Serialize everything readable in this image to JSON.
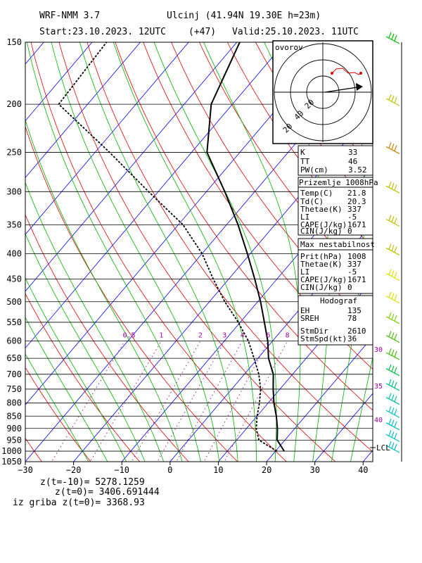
{
  "header": {
    "model": "WRF-NMM 3.7",
    "location": "Ulcinj (41.94N 19.30E  h=23m)",
    "start": "Start:23.10.2023.   12UTC",
    "lead": "(+47)",
    "valid": "Valid:25.10.2023.   11UTC"
  },
  "chart_data": {
    "type": "skew-t",
    "x_axis": {
      "ticks": [
        -30,
        -20,
        -10,
        0,
        10,
        20,
        30,
        40
      ],
      "xlim": [
        -30,
        42
      ]
    },
    "y_axis": {
      "scale": "log",
      "ticks": [
        150,
        200,
        250,
        300,
        350,
        400,
        450,
        500,
        550,
        600,
        650,
        700,
        750,
        800,
        850,
        900,
        950,
        1000,
        1050
      ],
      "ylim": [
        1050,
        150
      ]
    },
    "temperature_profile": [
      {
        "p": 1000,
        "t": 21.8
      },
      {
        "p": 950,
        "t": 18.4
      },
      {
        "p": 900,
        "t": 16.4
      },
      {
        "p": 850,
        "t": 14.0
      },
      {
        "p": 800,
        "t": 11.2
      },
      {
        "p": 750,
        "t": 8.6
      },
      {
        "p": 700,
        "t": 6.0
      },
      {
        "p": 650,
        "t": 2.2
      },
      {
        "p": 600,
        "t": -1.0
      },
      {
        "p": 550,
        "t": -5.0
      },
      {
        "p": 500,
        "t": -9.4
      },
      {
        "p": 450,
        "t": -14.6
      },
      {
        "p": 400,
        "t": -20.6
      },
      {
        "p": 350,
        "t": -27.6
      },
      {
        "p": 300,
        "t": -36.2
      },
      {
        "p": 250,
        "t": -46.8
      },
      {
        "p": 200,
        "t": -54.4
      },
      {
        "p": 150,
        "t": -59.4
      }
    ],
    "dewpoint_profile": [
      {
        "p": 1000,
        "t": 20.3
      },
      {
        "p": 950,
        "t": 14.6
      },
      {
        "p": 900,
        "t": 12.0
      },
      {
        "p": 850,
        "t": 10.0
      },
      {
        "p": 800,
        "t": 8.2
      },
      {
        "p": 750,
        "t": 6.0
      },
      {
        "p": 700,
        "t": 3.0
      },
      {
        "p": 650,
        "t": -0.8
      },
      {
        "p": 600,
        "t": -5.0
      },
      {
        "p": 550,
        "t": -10.4
      },
      {
        "p": 500,
        "t": -16.8
      },
      {
        "p": 450,
        "t": -23.2
      },
      {
        "p": 400,
        "t": -30.0
      },
      {
        "p": 350,
        "t": -39.0
      },
      {
        "p": 300,
        "t": -52.0
      },
      {
        "p": 250,
        "t": -67.0
      },
      {
        "p": 200,
        "t": -86.0
      },
      {
        "p": 150,
        "t": -87.0
      }
    ],
    "mixing_ratio_labels": [
      "0.5",
      "1",
      "2",
      "3",
      "4",
      "6",
      "8"
    ],
    "mixing_ratio_values": [
      0.5,
      1,
      2,
      3,
      4,
      6,
      8
    ],
    "height_labels": [
      "30",
      "35",
      "40"
    ],
    "lcl_label": "LCL"
  },
  "hodograph": {
    "title": "ovorov",
    "ring_labels": [
      "20",
      "40"
    ]
  },
  "indices": {
    "k_label": "K",
    "k_value": "33",
    "tt_label": "TT",
    "tt_value": "46",
    "pw_label": "PW(cm)",
    "pw_value": "3.52"
  },
  "surface": {
    "title": "Prizemlje 1008hPa",
    "rows": [
      {
        "label": "Temp(C)",
        "value": "21.8"
      },
      {
        "label": "Td(C)",
        "value": "20.3"
      },
      {
        "label": "Thetae(K)",
        "value": "337"
      },
      {
        "label": "LI",
        "value": "-5"
      },
      {
        "label": "CAPE(J/kg)",
        "value": "1671"
      },
      {
        "label": "CIN(J/kg)",
        "value": "0"
      }
    ]
  },
  "max_instab": {
    "title": "Max nestabilnost",
    "rows": [
      {
        "label": "Prit(hPa)",
        "value": "1008"
      },
      {
        "label": "Thetae(K)",
        "value": "337"
      },
      {
        "label": "LI",
        "value": "-5"
      },
      {
        "label": "CAPE(J/kg)",
        "value": "1671"
      },
      {
        "label": "CIN(J/kg)",
        "value": "0"
      }
    ]
  },
  "hodograf": {
    "title": "Hodograf",
    "rows": [
      {
        "label": "EH",
        "value": "135"
      },
      {
        "label": "SREH",
        "value": "78"
      },
      {
        "label": "StmDir",
        "value": "2610"
      },
      {
        "label": "StmSpd(kt)",
        "value": "36"
      }
    ]
  },
  "footer": {
    "line1": "z(t=-10)=  5278.1259",
    "line2": "z(t=0)=   3406.691444",
    "line3": "iz griba  z(t=0)=  3368.93"
  },
  "colors": {
    "isobar": "#000000",
    "isotherm": "#0000ff",
    "dry_adiabat": "#e00000",
    "moist_adiabat": "#00b000",
    "mixing_ratio": "#a000a0",
    "profile": "#000000"
  }
}
